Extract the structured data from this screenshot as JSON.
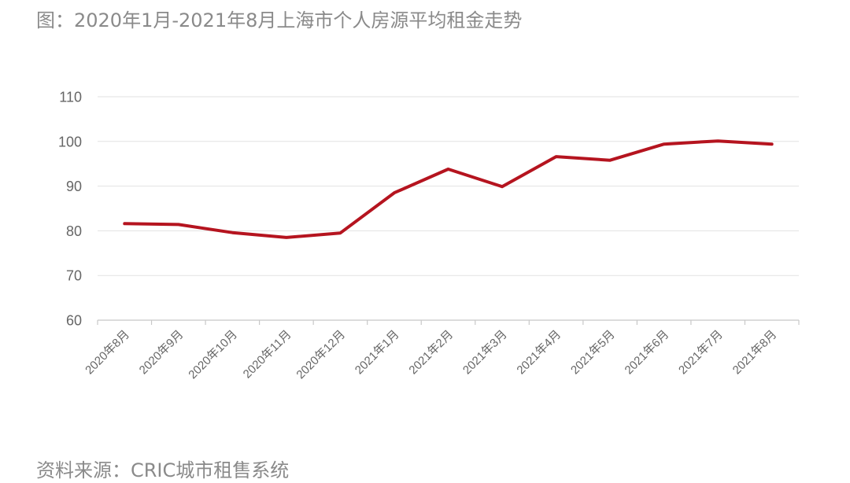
{
  "figure": {
    "title": "图：2020年1月-2021年8月上海市个人房源平均租金走势",
    "source": "资料来源：CRIC城市租售系统"
  },
  "chart_data": {
    "type": "line",
    "categories": [
      "2020年8月",
      "2020年9月",
      "2020年10月",
      "2020年11月",
      "2020年12月",
      "2021年1月",
      "2021年2月",
      "2021年3月",
      "2021年4月",
      "2021年5月",
      "2021年6月",
      "2021年7月",
      "2021年8月"
    ],
    "series": [
      {
        "values": [
          81.6,
          81.4,
          79.6,
          78.5,
          79.5,
          88.5,
          93.8,
          89.9,
          96.6,
          95.8,
          99.4,
          100.1,
          99.4
        ],
        "color": "#b5141f"
      }
    ],
    "y_ticks": [
      60,
      70,
      80,
      90,
      100,
      110
    ],
    "ylim": [
      60,
      110
    ],
    "grid": true,
    "legend": "none"
  }
}
